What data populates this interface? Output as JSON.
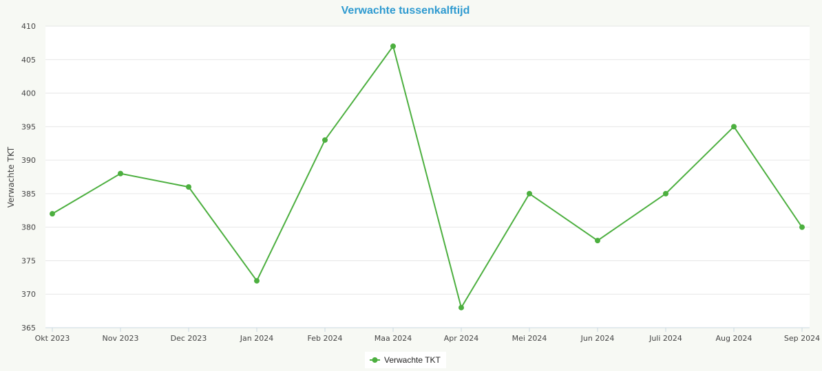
{
  "chart_data": {
    "type": "line",
    "title": "Verwachte tussenkalftijd",
    "xlabel": "",
    "ylabel": "Verwachte TKT",
    "categories": [
      "Okt 2023",
      "Nov 2023",
      "Dec 2023",
      "Jan 2024",
      "Feb 2024",
      "Maa 2024",
      "Apr 2024",
      "Mei 2024",
      "Jun 2024",
      "Juli 2024",
      "Aug 2024",
      "Sep 2024"
    ],
    "series": [
      {
        "name": "Verwachte TKT",
        "values": [
          382,
          388,
          386,
          372,
          393,
          407,
          368,
          385,
          378,
          385,
          395,
          380
        ]
      }
    ],
    "ylim": [
      365,
      410
    ],
    "yticks": [
      365,
      370,
      375,
      380,
      385,
      390,
      395,
      400,
      405,
      410
    ],
    "grid": true,
    "legend_position": "bottom-center",
    "colors": {
      "title": "#2e9ad0",
      "series": "#4caf3f",
      "grid": "#e6e6e6",
      "axis": "#c8d7e1"
    }
  }
}
